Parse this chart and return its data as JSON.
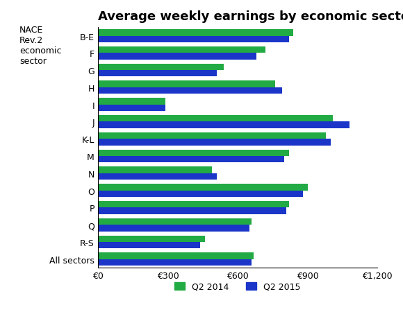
{
  "title": "Average weekly earnings by economic sector",
  "categories": [
    "B-E",
    "F",
    "G",
    "H",
    "I",
    "J",
    "K-L",
    "M",
    "N",
    "O",
    "P",
    "Q",
    "R-S",
    "All sectors"
  ],
  "q2_2014": [
    840,
    720,
    540,
    760,
    290,
    1010,
    980,
    820,
    490,
    900,
    820,
    660,
    460,
    670
  ],
  "q2_2015": [
    820,
    680,
    510,
    790,
    290,
    1080,
    1000,
    800,
    510,
    880,
    810,
    650,
    440,
    660
  ],
  "color_2014": "#22aa44",
  "color_2015": "#1a35c8",
  "xlim": [
    0,
    1200
  ],
  "xticks": [
    0,
    300,
    600,
    900,
    1200
  ],
  "ylabel_label": "NACE\nRev.2\neconomic\nsector",
  "legend_q2_2014": "Q2 2014",
  "legend_q2_2015": "Q2 2015",
  "bar_height": 0.38,
  "background_color": "#ffffff",
  "title_fontsize": 13,
  "axis_fontsize": 9,
  "tick_fontsize": 9
}
